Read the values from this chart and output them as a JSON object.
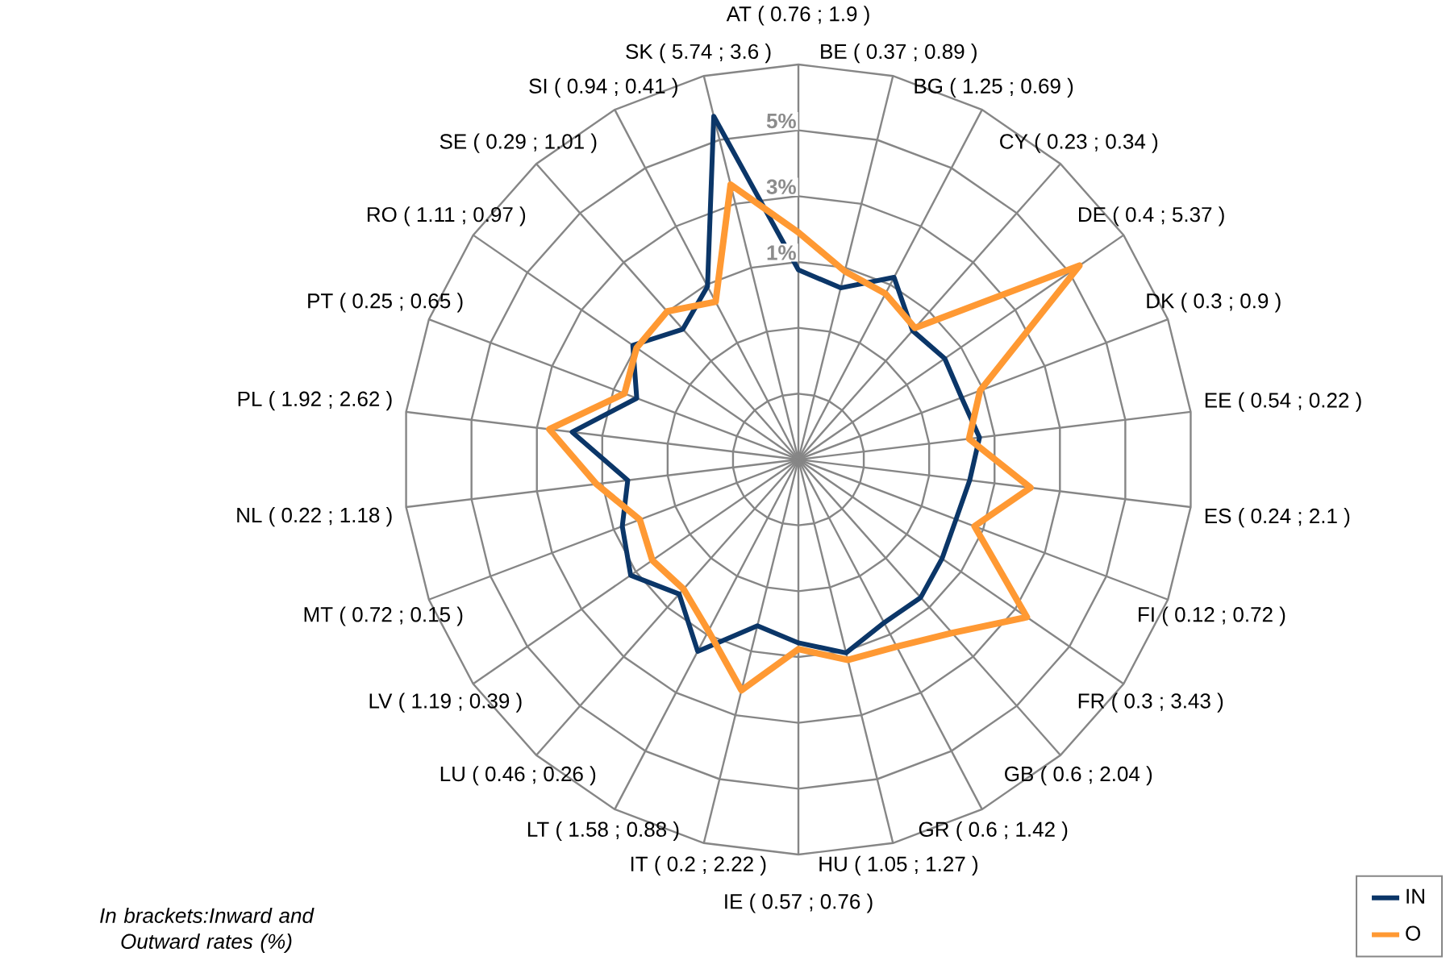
{
  "chart_data": {
    "type": "radar",
    "categories": [
      "AT ( 0.76 ; 1.9 )",
      "BE ( 0.37 ; 0.89 )",
      "BG ( 1.25 ; 0.69 )",
      "CY ( 0.23 ; 0.34 )",
      "DE ( 0.4 ; 5.37 )",
      "DK ( 0.3 ; 0.9 )",
      "EE ( 0.54 ; 0.22 )",
      "ES ( 0.24 ; 2.1 )",
      "FI ( 0.12 ; 0.72 )",
      "FR ( 0.3 ; 3.43 )",
      "GB ( 0.6 ; 2.04 )",
      "GR ( 0.6 ; 1.42 )",
      "HU ( 1.05 ; 1.27 )",
      "IE ( 0.57 ; 0.76 )",
      "IT ( 0.2 ; 2.22 )",
      "LT ( 1.58 ; 0.88 )",
      "LU ( 0.46 ; 0.26 )",
      "LV ( 1.19 ; 0.39 )",
      "MT ( 0.72 ; 0.15 )",
      "NL ( 0.22 ; 1.18 )",
      "PL ( 1.92 ; 2.62 )",
      "PT ( 0.25 ; 0.65 )",
      "RO ( 1.11 ; 0.97 )",
      "SE ( 0.29 ; 1.01 )",
      "SI ( 0.94 ; 0.41 )",
      "SK ( 5.74 ; 3.6 )"
    ],
    "series": [
      {
        "name": "IN",
        "color": "#0b3668",
        "values": [
          0.76,
          0.37,
          1.25,
          0.23,
          0.4,
          0.3,
          0.54,
          0.24,
          0.12,
          0.3,
          0.6,
          0.6,
          1.05,
          0.57,
          0.2,
          1.58,
          0.46,
          1.19,
          0.72,
          0.22,
          1.92,
          0.25,
          1.11,
          0.29,
          0.94,
          5.74
        ]
      },
      {
        "name": "O",
        "color": "#ff9933",
        "values": [
          1.9,
          0.89,
          0.69,
          0.34,
          5.37,
          0.9,
          0.22,
          2.1,
          0.72,
          3.43,
          2.04,
          1.42,
          1.27,
          0.76,
          2.22,
          0.88,
          0.26,
          0.39,
          0.15,
          1.18,
          2.62,
          0.65,
          0.97,
          1.01,
          0.41,
          3.6
        ]
      }
    ],
    "ylim": [
      -5,
      7
    ],
    "yticks": [
      {
        "value": 1,
        "label": "1%"
      },
      {
        "value": 3,
        "label": "3%"
      },
      {
        "value": 5,
        "label": "5%"
      }
    ],
    "grid": true,
    "legend": "bottom right",
    "annotations": [
      "In brackets:Inward and Outward rates (%)"
    ]
  }
}
